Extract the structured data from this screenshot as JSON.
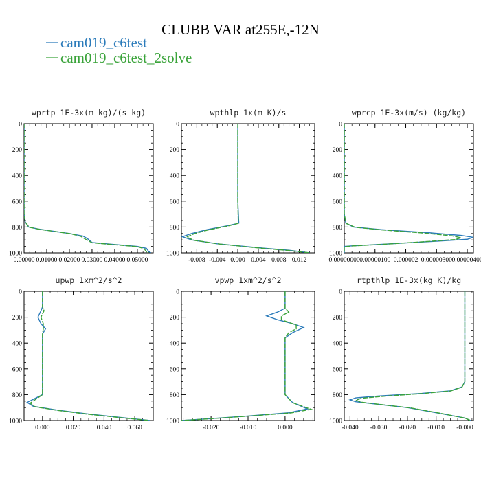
{
  "chart_data": {
    "type": "line",
    "title": "CLUBB VAR at255E,-12N",
    "series_styles": [
      {
        "name": "cam019_c6test",
        "color": "#2b7bba"
      },
      {
        "name": "cam019_c6test_2solve",
        "color": "#3aa33a"
      }
    ],
    "y_ticks": [
      "0",
      "200",
      "400",
      "600",
      "800",
      "1000"
    ],
    "ylim": [
      0,
      1000
    ],
    "panels": [
      {
        "title": "wprtp  1E-3x(m kg)/(s kg)",
        "xlim": [
          0,
          0.057
        ],
        "x_ticks": [
          0,
          0.01,
          0.02,
          0.03,
          0.04,
          0.05
        ],
        "x_tick_labels": [
          "0.00000",
          "0.01000",
          "0.02000",
          "0.03000",
          "0.04000",
          "0.05000"
        ],
        "series": [
          {
            "name": "cam019_c6test",
            "points": [
              [
                0,
                0
              ],
              [
                0,
                700
              ],
              [
                0.0005,
                760
              ],
              [
                0.002,
                800
              ],
              [
                0.006,
                815
              ],
              [
                0.012,
                830
              ],
              [
                0.02,
                850
              ],
              [
                0.026,
                870
              ],
              [
                0.028,
                890
              ],
              [
                0.03,
                920
              ],
              [
                0.04,
                935
              ],
              [
                0.05,
                950
              ],
              [
                0.054,
                965
              ],
              [
                0.055,
                990
              ],
              [
                0.056,
                1000
              ]
            ]
          },
          {
            "name": "cam019_c6test_2solve",
            "points": [
              [
                0,
                0
              ],
              [
                0,
                700
              ],
              [
                0.0006,
                762
              ],
              [
                0.0022,
                802
              ],
              [
                0.0065,
                817
              ],
              [
                0.0125,
                832
              ],
              [
                0.0205,
                852
              ],
              [
                0.025,
                872
              ],
              [
                0.027,
                893
              ],
              [
                0.03,
                922
              ],
              [
                0.04,
                937
              ],
              [
                0.05,
                952
              ],
              [
                0.053,
                968
              ],
              [
                0.054,
                992
              ],
              [
                0.055,
                1000
              ]
            ]
          }
        ]
      },
      {
        "title": "wpthlp  1x(m K)/s",
        "xlim": [
          -0.011,
          0.015
        ],
        "x_ticks": [
          -0.008,
          -0.004,
          0.0,
          0.004,
          0.008,
          0.012
        ],
        "x_tick_labels": [
          "-0.008",
          "-0.004",
          "0.000",
          "0.004",
          "0.008",
          "0.012"
        ],
        "series": [
          {
            "name": "cam019_c6test",
            "points": [
              [
                0,
                0
              ],
              [
                0,
                200
              ],
              [
                0,
                400
              ],
              [
                0,
                600
              ],
              [
                0.0002,
                770
              ],
              [
                -0.002,
                790
              ],
              [
                -0.006,
                820
              ],
              [
                -0.009,
                850
              ],
              [
                -0.0108,
                875
              ],
              [
                -0.009,
                900
              ],
              [
                -0.004,
                930
              ],
              [
                0.004,
                960
              ],
              [
                0.01,
                980
              ],
              [
                0.014,
                1000
              ]
            ]
          },
          {
            "name": "cam019_c6test_2solve",
            "points": [
              [
                0,
                0
              ],
              [
                0,
                200
              ],
              [
                0,
                400
              ],
              [
                0,
                600
              ],
              [
                0.0001,
                772
              ],
              [
                -0.002,
                793
              ],
              [
                -0.0058,
                823
              ],
              [
                -0.0085,
                852
              ],
              [
                -0.01,
                878
              ],
              [
                -0.0085,
                903
              ],
              [
                -0.0035,
                932
              ],
              [
                0.004,
                962
              ],
              [
                0.01,
                982
              ],
              [
                0.014,
                1000
              ]
            ]
          }
        ]
      },
      {
        "title": "wprcp  1E-3x(m/s) (kg/kg)",
        "xlim": [
          0,
          4.2e-06
        ],
        "x_ticks": [
          0,
          1e-06,
          2e-06,
          3e-06,
          4e-06
        ],
        "x_tick_labels": [
          "0.00000000",
          "0.00000100",
          "0.000002",
          "0.00000300",
          "0.00000400"
        ],
        "series": [
          {
            "name": "cam019_c6test",
            "points": [
              [
                0,
                0
              ],
              [
                0,
                700
              ],
              [
                5e-08,
                770
              ],
              [
                3e-07,
                800
              ],
              [
                1.2e-06,
                820
              ],
              [
                2.8e-06,
                845
              ],
              [
                3.8e-06,
                865
              ],
              [
                4.2e-06,
                880
              ],
              [
                4e-06,
                895
              ],
              [
                3e-06,
                910
              ],
              [
                1.5e-06,
                930
              ],
              [
                3e-07,
                945
              ],
              [
                0,
                950
              ],
              [
                0,
                1000
              ]
            ]
          },
          {
            "name": "cam019_c6test_2solve",
            "points": [
              [
                0,
                0
              ],
              [
                0,
                700
              ],
              [
                6e-08,
                772
              ],
              [
                3.5e-07,
                802
              ],
              [
                1.2e-06,
                822
              ],
              [
                2.6e-06,
                847
              ],
              [
                3.5e-06,
                868
              ],
              [
                3.8e-06,
                883
              ],
              [
                3.6e-06,
                897
              ],
              [
                2.7e-06,
                912
              ],
              [
                1.4e-06,
                932
              ],
              [
                3e-07,
                946
              ],
              [
                0,
                952
              ],
              [
                0,
                1000
              ]
            ]
          }
        ]
      },
      {
        "title": "upwp  1xm^2/s^2",
        "xlim": [
          -0.012,
          0.072
        ],
        "x_ticks": [
          0,
          0.02,
          0.04,
          0.06
        ],
        "x_tick_labels": [
          "0.000",
          "0.020",
          "0.040",
          "0.060"
        ],
        "series": [
          {
            "name": "cam019_c6test",
            "points": [
              [
                0,
                0
              ],
              [
                0,
                120
              ],
              [
                -0.001,
                150
              ],
              [
                -0.003,
                200
              ],
              [
                -0.001,
                250
              ],
              [
                0.002,
                290
              ],
              [
                0,
                330
              ],
              [
                0,
                400
              ],
              [
                0,
                600
              ],
              [
                0,
                800
              ],
              [
                -0.005,
                830
              ],
              [
                -0.01,
                860
              ],
              [
                -0.006,
                890
              ],
              [
                0.01,
                920
              ],
              [
                0.03,
                950
              ],
              [
                0.05,
                975
              ],
              [
                0.07,
                1000
              ]
            ]
          },
          {
            "name": "cam019_c6test_2solve",
            "points": [
              [
                0,
                0
              ],
              [
                0,
                120
              ],
              [
                0.001,
                150
              ],
              [
                -0.001,
                200
              ],
              [
                0.0005,
                250
              ],
              [
                0.0005,
                290
              ],
              [
                0,
                330
              ],
              [
                0,
                400
              ],
              [
                0,
                600
              ],
              [
                0,
                800
              ],
              [
                -0.004,
                833
              ],
              [
                -0.008,
                865
              ],
              [
                -0.005,
                893
              ],
              [
                0.01,
                922
              ],
              [
                0.03,
                952
              ],
              [
                0.05,
                977
              ],
              [
                0.07,
                1000
              ]
            ]
          }
        ]
      },
      {
        "title": "vpwp  1xm^2/s^2",
        "xlim": [
          -0.028,
          0.008
        ],
        "x_ticks": [
          -0.02,
          -0.01,
          0.0
        ],
        "x_tick_labels": [
          "-0.020",
          "-0.010",
          "0.000"
        ],
        "series": [
          {
            "name": "cam019_c6test",
            "points": [
              [
                0,
                0
              ],
              [
                0,
                130
              ],
              [
                -0.002,
                160
              ],
              [
                -0.005,
                190
              ],
              [
                -0.002,
                220
              ],
              [
                0.002,
                250
              ],
              [
                0.005,
                280
              ],
              [
                0.002,
                320
              ],
              [
                0,
                360
              ],
              [
                0,
                400
              ],
              [
                0,
                600
              ],
              [
                0,
                800
              ],
              [
                0.002,
                860
              ],
              [
                0.006,
                910
              ],
              [
                0.001,
                940
              ],
              [
                -0.01,
                965
              ],
              [
                -0.02,
                985
              ],
              [
                -0.028,
                1000
              ]
            ]
          },
          {
            "name": "cam019_c6test_2solve",
            "points": [
              [
                0,
                0
              ],
              [
                0,
                130
              ],
              [
                0.001,
                160
              ],
              [
                -0.001,
                190
              ],
              [
                -0.001,
                220
              ],
              [
                0.003,
                260
              ],
              [
                0.003,
                290
              ],
              [
                0.001,
                320
              ],
              [
                0,
                360
              ],
              [
                0,
                400
              ],
              [
                0,
                600
              ],
              [
                0,
                800
              ],
              [
                0.002,
                862
              ],
              [
                0.007,
                913
              ],
              [
                0.0015,
                942
              ],
              [
                -0.01,
                966
              ],
              [
                -0.02,
                986
              ],
              [
                -0.028,
                1000
              ]
            ]
          }
        ]
      },
      {
        "title": "rtpthlp  1E-3x(kg K)/kg",
        "xlim": [
          -0.042,
          0.003
        ],
        "x_ticks": [
          -0.04,
          -0.03,
          -0.02,
          -0.01,
          0.0
        ],
        "x_tick_labels": [
          "-0.040",
          "-0.030",
          "-0.020",
          "-0.010",
          "-0.000"
        ],
        "series": [
          {
            "name": "cam019_c6test",
            "points": [
              [
                0,
                0
              ],
              [
                0,
                400
              ],
              [
                0,
                700
              ],
              [
                -0.001,
                740
              ],
              [
                -0.005,
                770
              ],
              [
                -0.015,
                790
              ],
              [
                -0.03,
                810
              ],
              [
                -0.038,
                825
              ],
              [
                -0.04,
                840
              ],
              [
                -0.038,
                855
              ],
              [
                -0.03,
                875
              ],
              [
                -0.02,
                900
              ],
              [
                -0.01,
                940
              ],
              [
                0,
                980
              ],
              [
                0.002,
                1000
              ]
            ]
          },
          {
            "name": "cam019_c6test_2solve",
            "points": [
              [
                0,
                0
              ],
              [
                0,
                400
              ],
              [
                0,
                700
              ],
              [
                -0.001,
                742
              ],
              [
                -0.005,
                772
              ],
              [
                -0.015,
                792
              ],
              [
                -0.028,
                812
              ],
              [
                -0.036,
                828
              ],
              [
                -0.038,
                843
              ],
              [
                -0.036,
                858
              ],
              [
                -0.029,
                877
              ],
              [
                -0.019,
                902
              ],
              [
                -0.009,
                942
              ],
              [
                0,
                981
              ],
              [
                0.002,
                1000
              ]
            ]
          }
        ]
      }
    ]
  }
}
